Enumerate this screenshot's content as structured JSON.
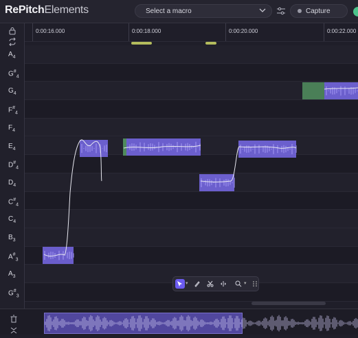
{
  "app": {
    "title_bold": "RePitch",
    "title_light": "Elements"
  },
  "header": {
    "macro_placeholder": "Select a macro",
    "capture_label": "Capture"
  },
  "ruler": {
    "times": [
      "0:00:16.000",
      "0:00:18.000",
      "0:00:20.000",
      "0:00:22.000"
    ]
  },
  "keys": [
    {
      "note": "A",
      "acc": "",
      "oct": "4"
    },
    {
      "note": "G",
      "acc": "#",
      "oct": "4"
    },
    {
      "note": "G",
      "acc": "",
      "oct": "4"
    },
    {
      "note": "F",
      "acc": "#",
      "oct": "4"
    },
    {
      "note": "F",
      "acc": "",
      "oct": "4"
    },
    {
      "note": "E",
      "acc": "",
      "oct": "4"
    },
    {
      "note": "D",
      "acc": "#",
      "oct": "4"
    },
    {
      "note": "D",
      "acc": "",
      "oct": "4"
    },
    {
      "note": "C",
      "acc": "#",
      "oct": "4"
    },
    {
      "note": "C",
      "acc": "",
      "oct": "4"
    },
    {
      "note": "B",
      "acc": "",
      "oct": "3"
    },
    {
      "note": "A",
      "acc": "#",
      "oct": "3"
    },
    {
      "note": "A",
      "acc": "",
      "oct": "3"
    },
    {
      "note": "G",
      "acc": "#",
      "oct": "3"
    }
  ],
  "icons": {
    "lock": "lock-icon",
    "loop": "loop-icon",
    "sliders": "sliders-icon",
    "trash": "trash-icon",
    "collapse": "collapse-icon",
    "tools": [
      "pointer-tool-icon",
      "pencil-tool-icon",
      "scissors-tool-icon",
      "timestretch-tool-icon",
      "zoom-tool-icon",
      "drag-handle-icon"
    ]
  },
  "colors": {
    "note_blob": "#7b6cf0",
    "note_selected": "#4f8a5c",
    "accent": "#6b5bf0",
    "status_on": "#4cc38a"
  }
}
